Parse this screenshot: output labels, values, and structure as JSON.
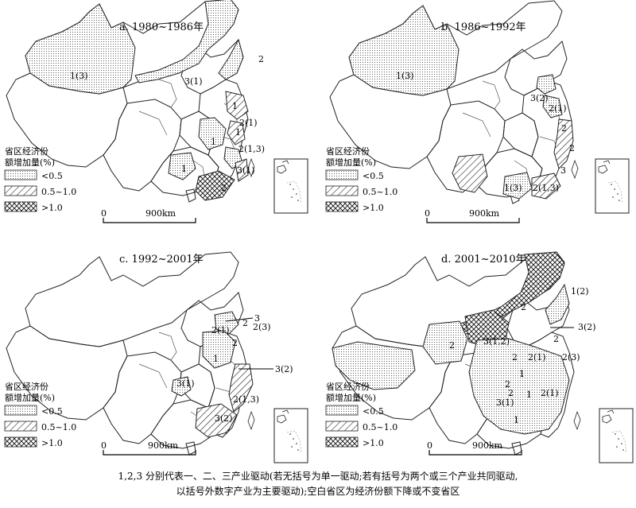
{
  "panels": [
    {
      "title": "a. 1980~1986年",
      "labels": [
        "1(3)",
        "2",
        "3(1)",
        "1",
        "2(1)",
        "1",
        "2(1,3)",
        "1",
        "1",
        "3(1)",
        "2"
      ]
    },
    {
      "title": "b. 1986~1992年",
      "labels": [
        "1(3)",
        "3(2)",
        "2(1)",
        "2",
        "2",
        "3",
        "1(3)",
        "2(1,3)"
      ]
    },
    {
      "title": "c. 1992~2001年",
      "labels": [
        "3",
        "2",
        "2(1)",
        "2(3)",
        "2",
        "1",
        "3(2)",
        "3(1)",
        "2(1,3)",
        "3(2)"
      ]
    },
    {
      "title": "d. 2001~2010年",
      "labels": [
        "1(2)",
        "2",
        "3(2)",
        "2",
        "3(1,2)",
        "2",
        "2",
        "2(1)",
        "2(3)",
        "1",
        "2",
        "2(1)",
        "2",
        "1",
        "3(1)",
        "1"
      ]
    }
  ],
  "legend": {
    "title_line1": "省区经济份",
    "title_line2": "额增加量(%)",
    "items": [
      "<0.5",
      "0.5~1.0",
      ">1.0"
    ]
  },
  "scale": {
    "zero": "0",
    "distance": "900km"
  },
  "caption": {
    "line1": "1,2,3 分别代表一、二、三产业驱动(若无括号为单一驱动;若有括号为两个或三个产业共同驱动,",
    "line2": "以括号外数字产业为主要驱动);空白省区为经济份额下降或不变省区"
  }
}
